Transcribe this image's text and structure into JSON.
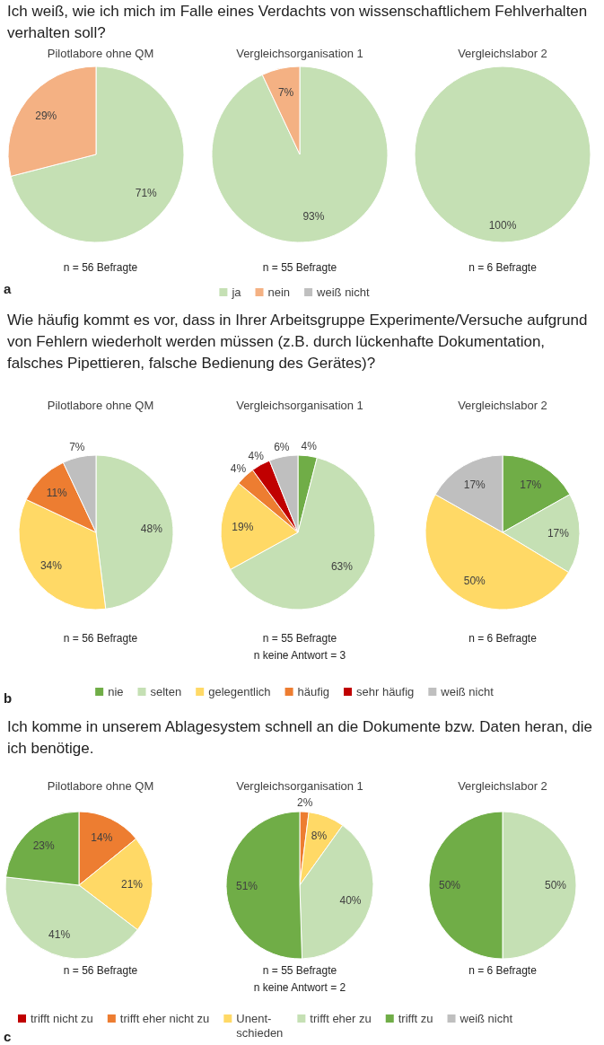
{
  "chart_data": [
    {
      "type": "pie",
      "title": "Ich weiß, wie ich mich im Falle eines Verdachts von wissenschaftlichem Fehlverhalten verhalten soll?",
      "categories": [
        "ja",
        "nein",
        "weiß nicht"
      ],
      "colors": [
        "#c5e0b4",
        "#f4b183",
        "#bfbfbf"
      ],
      "legend": "bottom",
      "annotations": [
        "n = 56 Befragte",
        "n = 55 Befragte",
        "n = 6 Befragte",
        "a"
      ],
      "series": [
        {
          "name": "Pilotlabore ohne QM",
          "values": [
            71,
            29,
            0
          ],
          "value_labels": [
            "71%",
            "29%",
            null
          ]
        },
        {
          "name": "Vergleichsorganisation 1",
          "values": [
            93,
            7,
            0
          ],
          "value_labels": [
            "93%",
            "7%",
            null
          ]
        },
        {
          "name": "Vergleichslabor 2",
          "values": [
            100,
            0,
            0
          ],
          "value_labels": [
            "100%",
            null,
            null
          ]
        }
      ]
    },
    {
      "type": "pie",
      "title": "Wie häufig kommt es vor, dass in Ihrer Arbeitsgruppe Experimente/Versuche aufgrund von Fehlern wiederholt werden müssen (z.B. durch lückenhafte Dokumentation, falsches Pipettieren, falsche Bedienung des Gerätes)?",
      "categories": [
        "nie",
        "selten",
        "gelegentlich",
        "häufig",
        "sehr häufig",
        "weiß nicht"
      ],
      "colors": [
        "#70ad47",
        "#c5e0b4",
        "#ffd966",
        "#ed7d31",
        "#c00000",
        "#bfbfbf"
      ],
      "legend": "bottom",
      "annotations": [
        "n = 56 Befragte",
        "n = 55 Befragte\nn keine Antwort = 3",
        "n = 6 Befragte",
        "b"
      ],
      "series": [
        {
          "name": "Pilotlabore ohne QM",
          "values": [
            0,
            48,
            34,
            11,
            0,
            7
          ],
          "value_labels": [
            null,
            "48%",
            "34%",
            "11%",
            null,
            "7%"
          ]
        },
        {
          "name": "Vergleichsorganisation 1",
          "values": [
            4,
            63,
            19,
            4,
            4,
            6
          ],
          "value_labels": [
            "4%",
            "63%",
            "19%",
            "4%",
            "4%",
            "6%"
          ]
        },
        {
          "name": "Vergleichslabor 2",
          "values": [
            17,
            17,
            50,
            0,
            0,
            17
          ],
          "value_labels": [
            "17%",
            "17%",
            "50%",
            null,
            null,
            "17%"
          ]
        }
      ]
    },
    {
      "type": "pie",
      "title": "Ich komme in unserem Ablagesystem schnell an die Dokumente bzw. Daten heran, die ich benötige.",
      "categories": [
        "trifft nicht zu",
        "trifft eher nicht zu",
        "Unent-schieden",
        "trifft eher zu",
        "trifft zu",
        "weiß nicht"
      ],
      "colors": [
        "#c00000",
        "#ed7d31",
        "#ffd966",
        "#c5e0b4",
        "#70ad47",
        "#bfbfbf"
      ],
      "legend": "bottom",
      "annotations": [
        "n = 56 Befragte",
        "n = 55 Befragte\nn keine Antwort = 2",
        "n = 6 Befragte",
        "c"
      ],
      "series": [
        {
          "name": "Pilotlabore ohne QM",
          "values": [
            0,
            14,
            21,
            41,
            23,
            0
          ],
          "value_labels": [
            null,
            "14%",
            "21%",
            "41%",
            "23%",
            null
          ]
        },
        {
          "name": "Vergleichsorganisation 1",
          "values": [
            0,
            2,
            8,
            40,
            51,
            0
          ],
          "value_labels": [
            null,
            "2%",
            "8%",
            "40%",
            "51%",
            null
          ]
        },
        {
          "name": "Vergleichslabor 2",
          "values": [
            0,
            0,
            0,
            50,
            50,
            0
          ],
          "value_labels": [
            null,
            null,
            null,
            "50%",
            "50%",
            null
          ]
        }
      ]
    }
  ]
}
